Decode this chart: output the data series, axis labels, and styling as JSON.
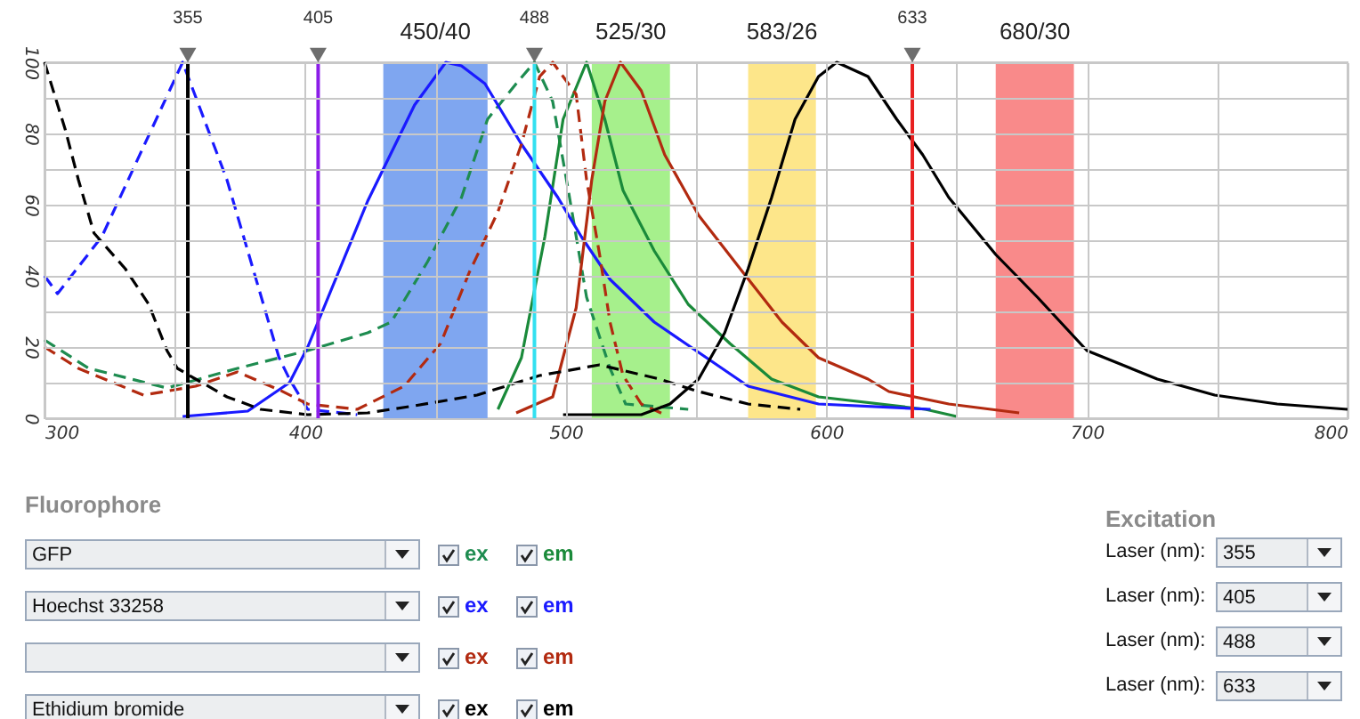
{
  "chart_data": {
    "type": "line",
    "xlim": [
      300,
      800
    ],
    "ylim": [
      0,
      100
    ],
    "xticks": [
      300,
      {
        "value": 350,
        "label": null
      },
      400,
      {
        "value": 450,
        "label": null
      },
      500,
      {
        "value": 550,
        "label": null
      },
      600,
      {
        "value": 650,
        "label": null
      },
      700,
      {
        "value": 750,
        "label": null
      },
      800
    ],
    "yticks": [
      0,
      {
        "value": 10,
        "label": null
      },
      20,
      {
        "value": 30,
        "label": null
      },
      40,
      {
        "value": 50,
        "label": null
      },
      60,
      {
        "value": 70,
        "label": null
      },
      80,
      {
        "value": 90,
        "label": null
      },
      100
    ],
    "grid": true,
    "series": [
      {
        "color": "#1e8c50",
        "line_style": "dashed",
        "x": [
          300,
          317,
          347,
          374,
          401,
          424,
          433,
          447,
          460,
          470,
          481,
          488,
          495,
          501,
          508,
          517,
          523,
          547
        ],
        "values": [
          22,
          14,
          8.5,
          14,
          19,
          24,
          27,
          44,
          62,
          84,
          94,
          100,
          89,
          64,
          34,
          14,
          4,
          2.5
        ]
      },
      {
        "color": "#1a8a3a",
        "line_style": "solid",
        "x": [
          474,
          483,
          492,
          499,
          508,
          515,
          522,
          534,
          547,
          563,
          579,
          597,
          638,
          650
        ],
        "values": [
          2.5,
          17,
          51,
          84,
          100,
          84,
          64,
          47,
          32,
          21,
          11,
          6,
          2.5,
          0.5
        ]
      },
      {
        "color": "#1a1aff",
        "line_style": "dashed",
        "x": [
          300,
          305,
          322,
          353,
          370,
          378,
          390,
          394,
          401,
          420
        ],
        "values": [
          40,
          35,
          51,
          100,
          67,
          47,
          17,
          11,
          2.5,
          1
        ]
      },
      {
        "color": "#1a1aff",
        "line_style": "solid",
        "x": [
          353,
          378,
          394,
          401,
          424,
          442,
          454,
          460,
          469,
          483,
          497,
          506,
          517,
          534,
          554,
          570,
          597,
          640
        ],
        "values": [
          0.5,
          2,
          10,
          20,
          61,
          88,
          100,
          99,
          94,
          77,
          62,
          51,
          39,
          27,
          17,
          9,
          4,
          2.5
        ]
      },
      {
        "color": "#b22a10",
        "line_style": "dashed",
        "x": [
          300,
          313,
          338,
          358,
          374,
          390,
          401,
          420,
          438,
          452,
          463,
          474,
          483,
          490,
          495,
          504,
          508,
          513,
          517,
          522,
          529,
          538
        ],
        "values": [
          20,
          14,
          6.5,
          9,
          13,
          8,
          4,
          2.5,
          9,
          21,
          41,
          58,
          77,
          96,
          100,
          91,
          67,
          46,
          27,
          12,
          4,
          1
        ]
      },
      {
        "color": "#b22a10",
        "line_style": "solid",
        "x": [
          481,
          495,
          504,
          510,
          515,
          521,
          529,
          538,
          551,
          568,
          583,
          597,
          616,
          624,
          647,
          674
        ],
        "values": [
          1.5,
          6,
          31,
          67,
          89,
          100,
          92,
          74,
          57,
          41,
          27,
          17,
          11,
          7.5,
          4,
          1.5
        ]
      },
      {
        "color": "#000000",
        "line_style": "dashed",
        "x": [
          300,
          308,
          313,
          319,
          331,
          340,
          347,
          351,
          358,
          370,
          383,
          401,
          424,
          442,
          466,
          490,
          513,
          536,
          551,
          570,
          590
        ],
        "values": [
          100,
          81,
          67,
          52,
          42,
          32,
          19,
          14,
          11,
          6,
          2.5,
          1,
          1.5,
          3.5,
          6.5,
          12,
          15,
          11,
          7.5,
          4,
          2.5
        ]
      },
      {
        "color": "#000000",
        "line_style": "solid",
        "x": [
          499,
          529,
          540,
          551,
          561,
          570,
          579,
          588,
          597,
          604,
          616,
          627,
          637,
          647,
          665,
          681,
          700,
          727,
          749,
          773,
          800
        ],
        "values": [
          1,
          1,
          4,
          11,
          24,
          42,
          62,
          84,
          96,
          100,
          96,
          84,
          74,
          62,
          46,
          34,
          19,
          11,
          6.5,
          4,
          2.5
        ]
      }
    ],
    "bands": [
      {
        "axis": "x",
        "from": 430,
        "to": 470,
        "label": "450/40",
        "color": "#7fa6f0"
      },
      {
        "axis": "x",
        "from": 510,
        "to": 540,
        "label": "525/30",
        "color": "#a6f08c"
      },
      {
        "axis": "x",
        "from": 570,
        "to": 596,
        "label": "583/26",
        "color": "#fde68a"
      },
      {
        "axis": "x",
        "from": 665,
        "to": 695,
        "label": "680/30",
        "color": "#f98a8a"
      }
    ],
    "ref_lines": [
      {
        "axis": "x",
        "value": 355,
        "label": "355",
        "color": "#000000"
      },
      {
        "axis": "x",
        "value": 405,
        "label": "405",
        "color": "#8b1ee8"
      },
      {
        "axis": "x",
        "value": 488,
        "label": "488",
        "color": "#33e0f0"
      },
      {
        "axis": "x",
        "value": 633,
        "label": "633",
        "color": "#e82020"
      }
    ],
    "annotations": [
      "Fluorophore",
      "GFP",
      "Hoechst 33258",
      "Ethidium bromide",
      "ex",
      "em",
      "Excitation",
      "Laser (nm):"
    ]
  }
}
